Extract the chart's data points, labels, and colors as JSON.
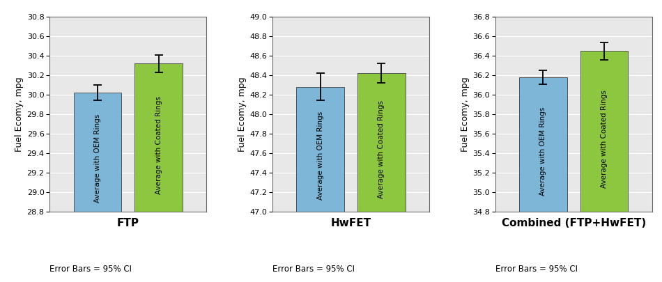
{
  "charts": [
    {
      "title": "FTP",
      "ylabel": "Fuel Ecomy, mpg",
      "ylim": [
        28.8,
        30.8
      ],
      "yticks": [
        28.8,
        29.0,
        29.2,
        29.4,
        29.6,
        29.8,
        30.0,
        30.2,
        30.4,
        30.6,
        30.8
      ],
      "bars": [
        30.02,
        30.32
      ],
      "errors": [
        0.08,
        0.09
      ],
      "error_note": "Error Bars = 95% CI"
    },
    {
      "title": "HwFET",
      "ylabel": "Fuel Ecomy, mpg",
      "ylim": [
        47.0,
        49.0
      ],
      "yticks": [
        47.0,
        47.2,
        47.4,
        47.6,
        47.8,
        48.0,
        48.2,
        48.4,
        48.6,
        48.8,
        49.0
      ],
      "bars": [
        48.28,
        48.42
      ],
      "errors": [
        0.14,
        0.1
      ],
      "error_note": "Error Bars = 95% CI"
    },
    {
      "title": "Combined (FTP+HwFET)",
      "ylabel": "Fuel Ecomy, mpg",
      "ylim": [
        34.8,
        36.8
      ],
      "yticks": [
        34.8,
        35.0,
        35.2,
        35.4,
        35.6,
        35.8,
        36.0,
        36.2,
        36.4,
        36.6,
        36.8
      ],
      "bars": [
        36.18,
        36.45
      ],
      "errors": [
        0.07,
        0.09
      ],
      "error_note": "Error Bars = 95% CI"
    }
  ],
  "bar_labels": [
    "Average with OEM Rings",
    "Average with Coated Rings"
  ],
  "bar_colors": [
    "#7eb6d8",
    "#8dc63f"
  ],
  "bar_edge_color": "#555555",
  "background_color": "#ffffff",
  "plot_bg_color": "#e8e8e8",
  "grid_color": "#ffffff",
  "title_fontsize": 11,
  "label_fontsize": 9,
  "tick_fontsize": 8,
  "bar_label_fontsize": 7.5,
  "error_note_fontsize": 8.5,
  "ylabel_fontsize": 9
}
